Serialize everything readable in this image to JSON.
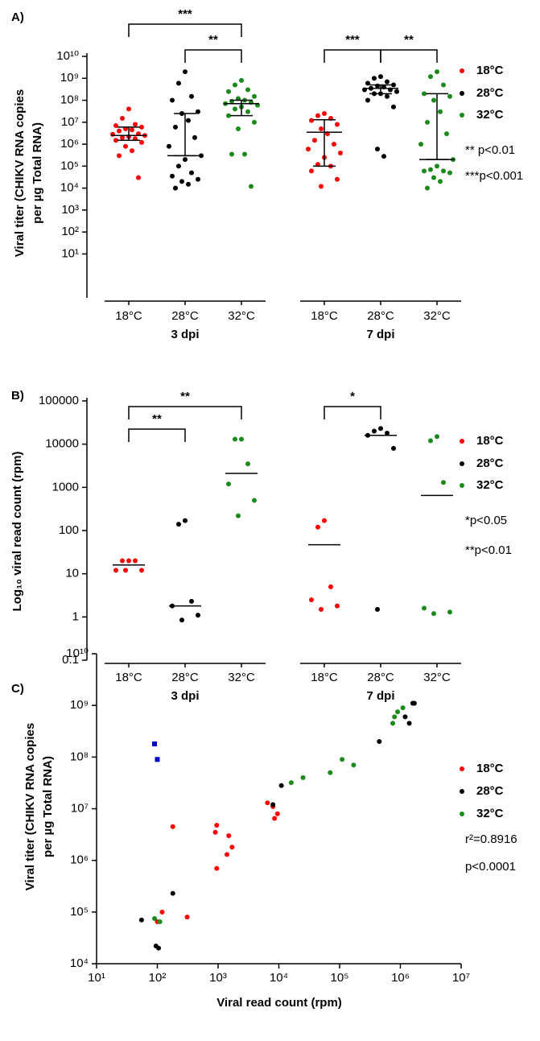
{
  "chart_data": [
    {
      "type": "dotplot",
      "panel": "A)",
      "ylabel": [
        "Viral titer (CHIKV RNA copies",
        "per µg Total RNA)"
      ],
      "yscale": "log",
      "ylim": [
        0.1,
        10000000000.0
      ],
      "yticks": [
        {
          "value": 10,
          "label": "10¹"
        },
        {
          "value": 100,
          "label": "10²"
        },
        {
          "value": 1000,
          "label": "10³"
        },
        {
          "value": 10000.0,
          "label": "10⁴"
        },
        {
          "value": 100000.0,
          "label": "10⁵"
        },
        {
          "value": 1000000.0,
          "label": "10⁶"
        },
        {
          "value": 10000000.0,
          "label": "10⁷"
        },
        {
          "value": 100000000.0,
          "label": "10⁸"
        },
        {
          "value": 1000000000.0,
          "label": "10⁹"
        },
        {
          "value": 10000000000.0,
          "label": "10¹⁰"
        }
      ],
      "legend": [
        {
          "label": "18°C",
          "color": "#ff0000"
        },
        {
          "label": "28°C",
          "color": "#000000"
        },
        {
          "label": "32°C",
          "color": "#1a8a1a"
        }
      ],
      "notes": [
        "** p<0.01",
        "***p<0.001"
      ],
      "groups": [
        {
          "label": "3 dpi",
          "sets": [
            {
              "category": "18°C",
              "median": 2500000,
              "iqr": [
                1500000,
                6000000
              ],
              "values": [
                40000000.0,
                15000000.0,
                8000000.0,
                7000000.0,
                6000000.0,
                5000000.0,
                4500000.0,
                4000000.0,
                3000000.0,
                2800000.0,
                2500000.0,
                2200000.0,
                2000000.0,
                1800000.0,
                1500000.0,
                1200000.0,
                800000.0,
                500000.0,
                300000.0,
                30000.0
              ]
            },
            {
              "category": "28°C",
              "median": 300000,
              "iqr": [
                300000,
                25000000.0
              ],
              "values": [
                2000000000.0,
                600000000.0,
                150000000.0,
                100000000.0,
                30000000.0,
                25000000.0,
                12000000.0,
                6000000.0,
                2000000.0,
                800000.0,
                300000.0,
                200000.0,
                100000.0,
                50000.0,
                35000.0,
                25000.0,
                20000.0,
                15000.0,
                10000.0
              ]
            },
            {
              "category": "32°C",
              "median": 70000000.0,
              "iqr": [
                20000000.0,
                100000000.0
              ],
              "values": [
                800000000.0,
                500000000.0,
                300000000.0,
                250000000.0,
                150000000.0,
                120000000.0,
                100000000.0,
                90000000.0,
                80000000.0,
                70000000.0,
                60000000.0,
                50000000.0,
                40000000.0,
                30000000.0,
                20000000.0,
                10000000.0,
                5000000.0,
                350000.0,
                350000.0,
                12000.0
              ]
            }
          ]
        },
        {
          "label": "7 dpi",
          "sets": [
            {
              "category": "18°C",
              "median": 3500000,
              "iqr": [
                100000.0,
                13000000.0
              ],
              "values": [
                25000000.0,
                20000000.0,
                15000000.0,
                12000000.0,
                8000000.0,
                5000000.0,
                3000000.0,
                1500000.0,
                1000000.0,
                600000.0,
                400000.0,
                250000.0,
                120000.0,
                100000.0,
                60000.0,
                25000.0,
                12000.0
              ]
            },
            {
              "category": "28°C",
              "median": 350000000.0,
              "iqr": [
                200000000.0,
                500000000.0
              ],
              "values": [
                1200000000.0,
                1000000000.0,
                700000000.0,
                600000000.0,
                500000000.0,
                450000000.0,
                400000000.0,
                350000000.0,
                300000000.0,
                300000000.0,
                250000000.0,
                200000000.0,
                200000000.0,
                150000000.0,
                100000000.0,
                50000000.0,
                600000.0,
                280000.0
              ]
            },
            {
              "category": "32°C",
              "median": 200000,
              "iqr": [
                200000,
                200000000.0
              ],
              "values": [
                2000000000.0,
                1200000000.0,
                500000000.0,
                200000000.0,
                150000000.0,
                100000000.0,
                30000000.0,
                10000000.0,
                3000000.0,
                1000000.0,
                200000.0,
                100000.0,
                70000.0,
                60000.0,
                60000.0,
                50000.0,
                30000.0,
                20000.0,
                10000.0
              ]
            }
          ]
        }
      ],
      "brackets": [
        {
          "group": 0,
          "from": 0,
          "to": 2,
          "label": "***"
        },
        {
          "group": 0,
          "from": 1,
          "to": 2,
          "label": "**"
        },
        {
          "group": 1,
          "from": 0,
          "to": 1,
          "label": "***"
        },
        {
          "group": 1,
          "from": 1,
          "to": 2,
          "label": "**"
        }
      ]
    },
    {
      "type": "dotplot",
      "panel": "B)",
      "ylabel": [
        "Log₁₀ viral read count (rpm)"
      ],
      "yscale": "log",
      "ylim": [
        0.1,
        100000
      ],
      "yticks": [
        0.1,
        1,
        10,
        100,
        1000,
        10000,
        100000
      ],
      "legend": [
        {
          "label": "18°C",
          "color": "#ff0000"
        },
        {
          "label": "28°C",
          "color": "#000000"
        },
        {
          "label": "32°C",
          "color": "#1a8a1a"
        }
      ],
      "notes": [
        "*p<0.05",
        "**p<0.01"
      ],
      "groups": [
        {
          "label": "3 dpi",
          "sets": [
            {
              "category": "18°C",
              "median": 16,
              "values": [
                20,
                20,
                20,
                12,
                12,
                12
              ]
            },
            {
              "category": "28°C",
              "median": 1.8,
              "values": [
                170,
                140,
                2.3,
                1.8,
                1.1,
                0.85
              ]
            },
            {
              "category": "32°C",
              "median": 2100,
              "values": [
                13000,
                13000,
                3500,
                1200,
                500,
                220
              ]
            }
          ]
        },
        {
          "label": "7 dpi",
          "sets": [
            {
              "category": "18°C",
              "median": 47,
              "values": [
                170,
                120,
                5,
                2.5,
                1.8,
                1.5
              ]
            },
            {
              "category": "28°C",
              "median": 16000,
              "values": [
                23000,
                20000,
                18000,
                16000,
                8000,
                1.5
              ]
            },
            {
              "category": "32°C",
              "median": 650,
              "values": [
                15000,
                12000,
                1300,
                1.6,
                1.3,
                1.2
              ]
            }
          ]
        }
      ],
      "brackets": [
        {
          "group": 0,
          "from": 0,
          "to": 1,
          "label": "**"
        },
        {
          "group": 0,
          "from": 0,
          "to": 2,
          "label": "**"
        },
        {
          "group": 1,
          "from": 0,
          "to": 1,
          "label": "*"
        }
      ]
    },
    {
      "type": "scatter",
      "panel": "C)",
      "ylabel": [
        "Viral titer (CHIKV RNA copies",
        "per µg Total RNA)"
      ],
      "xlabel": "Viral read count (rpm)",
      "xscale": "log",
      "yscale": "log",
      "xlim": [
        10,
        10000000.0
      ],
      "ylim": [
        10000.0,
        10000000000.0
      ],
      "xticks": [
        {
          "value": 10,
          "label": "10¹"
        },
        {
          "value": 100,
          "label": "10²"
        },
        {
          "value": 1000,
          "label": "10³"
        },
        {
          "value": 10000.0,
          "label": "10⁴"
        },
        {
          "value": 100000.0,
          "label": "10⁵"
        },
        {
          "value": 1000000.0,
          "label": "10⁶"
        },
        {
          "value": 10000000.0,
          "label": "10⁷"
        }
      ],
      "yticks": [
        {
          "value": 10000.0,
          "label": "10⁴"
        },
        {
          "value": 100000.0,
          "label": "10⁵"
        },
        {
          "value": 1000000.0,
          "label": "10⁶"
        },
        {
          "value": 10000000.0,
          "label": "10⁷"
        },
        {
          "value": 100000000.0,
          "label": "10⁸"
        },
        {
          "value": 1000000000.0,
          "label": "10⁹"
        },
        {
          "value": 10000000000.0,
          "label": "10¹⁰"
        }
      ],
      "notes": [
        "r²=0.8916",
        "p<0.0001"
      ],
      "series": [
        {
          "name": "18°C",
          "color": "#ff0000",
          "x": [
            180,
            900,
            950,
            950,
            1400,
            1500,
            1700,
            6500,
            8000,
            8500,
            9500,
            100,
            120,
            310
          ],
          "values": [
            4500000.0,
            3500000.0,
            4800000.0,
            700000.0,
            1300000.0,
            3000000.0,
            1800000.0,
            13000000.0,
            11000000.0,
            6500000.0,
            8000000.0,
            65000.0,
            100000.0,
            80000.0
          ]
        },
        {
          "name": "28°C",
          "color": "#000000",
          "x": [
            55,
            95,
            105,
            180,
            8000,
            11000,
            450000,
            1200000,
            1400000,
            1600000,
            1700000
          ],
          "values": [
            70000.0,
            22000.0,
            20000.0,
            230000.0,
            12000000.0,
            28000000.0,
            200000000.0,
            600000000.0,
            450000000.0,
            1100000000.0,
            1100000000.0
          ]
        },
        {
          "name": "32°C",
          "color": "#1a8a1a",
          "x": [
            90,
            110,
            16000,
            25000,
            70000,
            110000,
            170000,
            750000,
            800000,
            900000,
            1100000
          ],
          "values": [
            75000.0,
            65000.0,
            32000000.0,
            40000000.0,
            50000000.0,
            90000000.0,
            70000000.0,
            450000000.0,
            600000000.0,
            750000000.0,
            900000000.0
          ]
        },
        {
          "color": "#0000cc",
          "marker": "square",
          "x": [
            90,
            100
          ],
          "values": [
            180000000.0,
            90000000.0
          ]
        }
      ]
    }
  ]
}
